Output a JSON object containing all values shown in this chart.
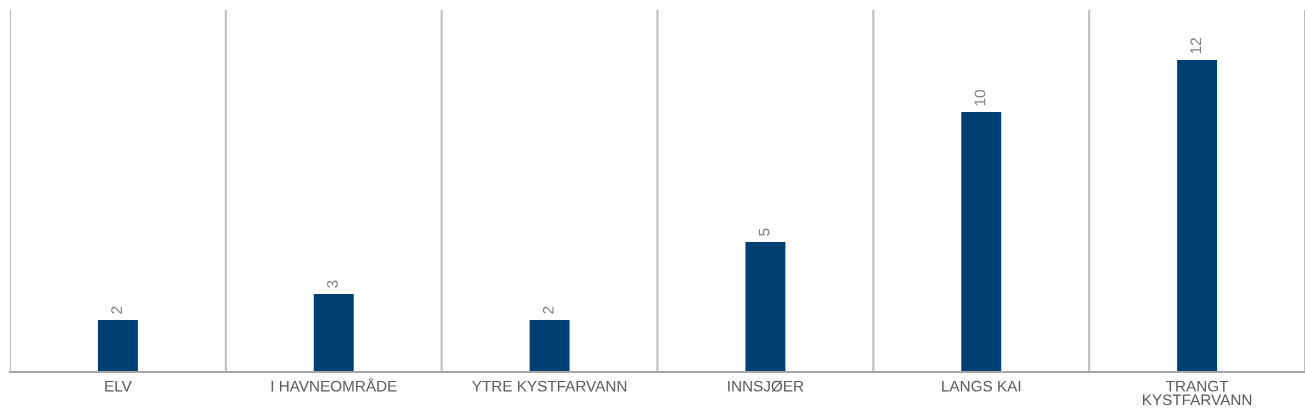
{
  "chart_data": {
    "type": "bar",
    "categories": [
      "ELV",
      "I HAVNEOMRÅDE",
      "YTRE KYSTFARVANN",
      "INNSJØER",
      "LANGS KAI",
      "TRANGT KYSTFARVANN"
    ],
    "values": [
      2,
      3,
      2,
      5,
      10,
      12
    ],
    "color": "#003f72",
    "data_labels": true,
    "grid": "x"
  }
}
